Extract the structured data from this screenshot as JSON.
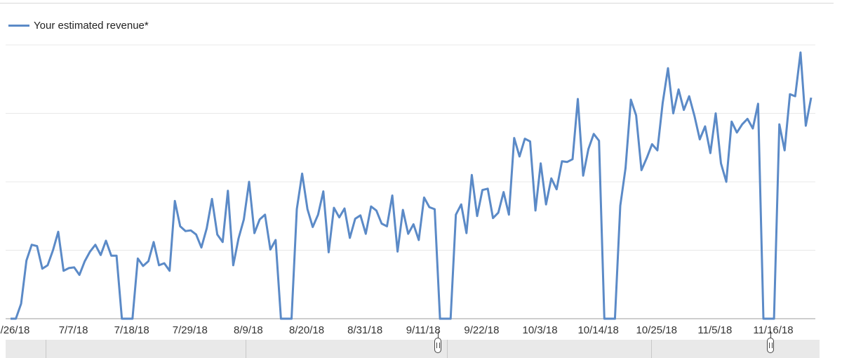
{
  "chart_data": {
    "type": "line",
    "legend": "Your estimated revenue*",
    "legend_position": "top-left",
    "ylim": [
      0,
      4
    ],
    "grid": true,
    "x_tick_labels": [
      "/26/18",
      "7/7/18",
      "7/18/18",
      "7/29/18",
      "8/9/18",
      "8/20/18",
      "8/31/18",
      "9/11/18",
      "9/22/18",
      "10/3/18",
      "10/14/18",
      "10/25/18",
      "11/5/18",
      "11/16/18"
    ],
    "series": [
      {
        "name": "Your estimated revenue*",
        "color": "#5b8ac7",
        "values": [
          0,
          0,
          0.22,
          0.85,
          1.08,
          1.06,
          0.73,
          0.78,
          1.0,
          1.27,
          0.7,
          0.74,
          0.75,
          0.64,
          0.84,
          0.98,
          1.08,
          0.93,
          1.14,
          0.92,
          0.92,
          0,
          0,
          0,
          0.88,
          0.77,
          0.84,
          1.12,
          0.78,
          0.81,
          0.7,
          1.72,
          1.35,
          1.28,
          1.29,
          1.23,
          1.04,
          1.32,
          1.75,
          1.23,
          1.12,
          1.87,
          0.78,
          1.17,
          1.45,
          2.0,
          1.25,
          1.45,
          1.52,
          1.01,
          1.15,
          0,
          0,
          0,
          1.6,
          2.12,
          1.6,
          1.34,
          1.52,
          1.86,
          0.97,
          1.62,
          1.48,
          1.61,
          1.18,
          1.46,
          1.51,
          1.24,
          1.64,
          1.58,
          1.39,
          1.35,
          1.8,
          0.98,
          1.59,
          1.24,
          1.38,
          1.15,
          1.77,
          1.63,
          1.6,
          0,
          0,
          0,
          1.52,
          1.67,
          1.25,
          2.1,
          1.5,
          1.88,
          1.9,
          1.47,
          1.55,
          1.85,
          1.52,
          2.64,
          2.37,
          2.63,
          2.59,
          1.58,
          2.27,
          1.67,
          2.05,
          1.89,
          2.3,
          2.29,
          2.33,
          3.21,
          2.09,
          2.48,
          2.7,
          2.6,
          0,
          0,
          0,
          1.65,
          2.2,
          3.2,
          2.97,
          2.17,
          2.35,
          2.55,
          2.46,
          3.15,
          3.66,
          3.0,
          3.35,
          3.05,
          3.25,
          2.96,
          2.62,
          2.81,
          2.42,
          3.0,
          2.27,
          2.0,
          2.88,
          2.72,
          2.84,
          2.92,
          2.78,
          3.14,
          0,
          0,
          0,
          2.84,
          2.46,
          3.28,
          3.25,
          3.89,
          2.82,
          3.23
        ]
      }
    ]
  },
  "scrubber": {
    "start_handle": "handle",
    "end_handle": "handle"
  }
}
